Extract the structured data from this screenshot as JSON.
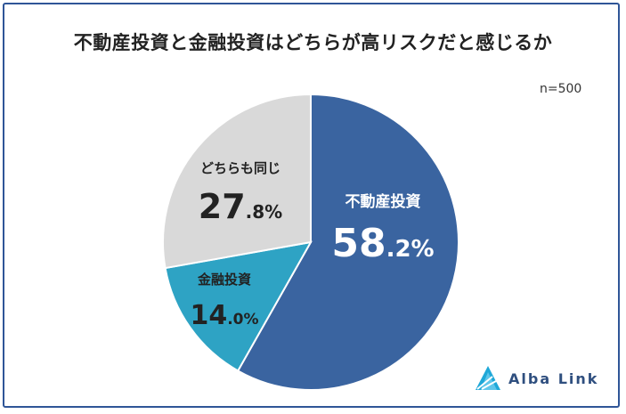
{
  "chart_data": {
    "type": "pie",
    "title": "不動産投資と金融投資はどちらが高リスクだと感じるか",
    "sample_size": "n=500",
    "slices": [
      {
        "label": "不動産投資",
        "value": 58.2,
        "int": "58",
        "dec": ".2%",
        "color": "#3a64a0"
      },
      {
        "label": "金融投資",
        "value": 14.0,
        "int": "14",
        "dec": ".0%",
        "color": "#2ea3c4"
      },
      {
        "label": "どちらも同じ",
        "value": 27.8,
        "int": "27",
        "dec": ".8%",
        "color": "#d9d9d9"
      }
    ]
  },
  "brand": {
    "name": "Alba Link",
    "color": "#2f4f7f",
    "accent": "#1fa8d8"
  },
  "frame_color": "#2f5597"
}
